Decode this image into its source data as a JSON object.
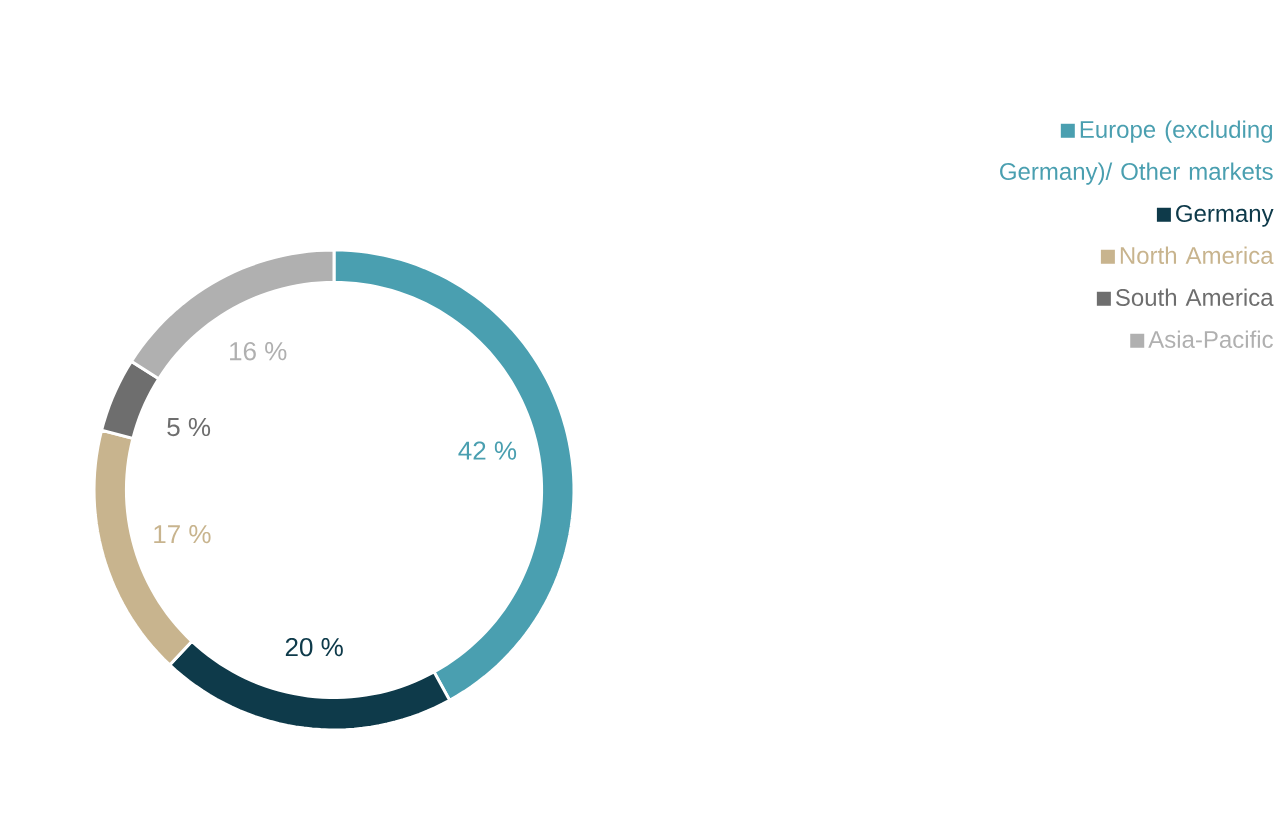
{
  "chart_data": {
    "type": "donut",
    "categories": [
      "Europe (excluding Germany)/ Other markets",
      "Germany",
      "North America",
      "South America",
      "Asia-Pacific"
    ],
    "values": [
      42,
      20,
      17,
      5,
      16
    ],
    "value_labels": [
      "42 %",
      "20 %",
      "17 %",
      "5 %",
      "16 %"
    ],
    "colors": [
      "#4a9fb0",
      "#0e3a4a",
      "#c8b48e",
      "#6e6e6e",
      "#b0b0b0"
    ],
    "legend": "top right"
  }
}
